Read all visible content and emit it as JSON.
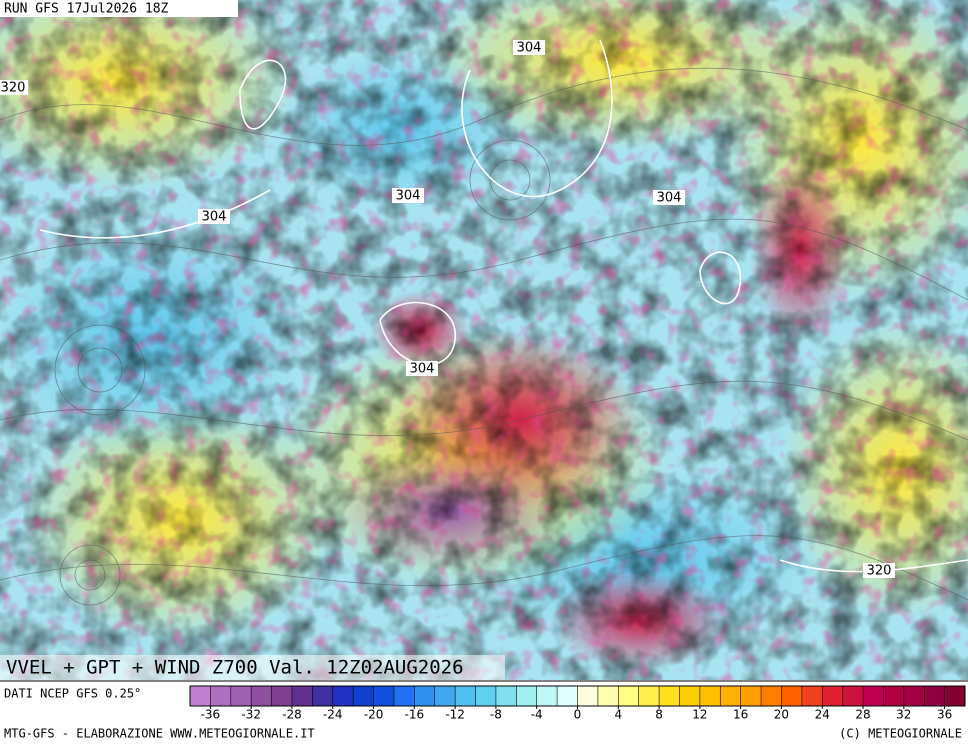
{
  "header": {
    "run": "RUN GFS 17Jul2026 18Z"
  },
  "contour_labels": [
    "304",
    "320",
    "304",
    "304",
    "304",
    "304",
    "320"
  ],
  "title": "VVEL + GPT + WIND Z700 Val. 12Z02AUG2026",
  "source": "DATI NCEP GFS 0.25°",
  "footer": {
    "left": "MTG-GFS - ELABORAZIONE WWW.METEOGIORNALE.IT",
    "right": "(C) METEOGIORNALE"
  },
  "colorbar": {
    "ticks": [
      -36,
      -32,
      -28,
      -24,
      -20,
      -16,
      -12,
      -8,
      -4,
      0,
      4,
      8,
      12,
      16,
      20,
      24,
      28,
      32,
      36
    ],
    "colors": [
      "#c080d0",
      "#b070c0",
      "#a060b0",
      "#9050a0",
      "#804090",
      "#603090",
      "#4030a0",
      "#2030c0",
      "#1040d0",
      "#1050e0",
      "#2070f0",
      "#3090f0",
      "#40a8f0",
      "#50c0f0",
      "#60d0f0",
      "#80e0f0",
      "#a0f0f0",
      "#c0f8f8",
      "#e0ffff",
      "#ffffe0",
      "#ffffb0",
      "#ffff80",
      "#fff050",
      "#ffe020",
      "#ffd000",
      "#ffc000",
      "#ffb000",
      "#ffa000",
      "#ff8000",
      "#ff6000",
      "#f04020",
      "#e02030",
      "#d01040",
      "#c00050",
      "#b00040",
      "#a00040",
      "#900040",
      "#800030"
    ]
  }
}
